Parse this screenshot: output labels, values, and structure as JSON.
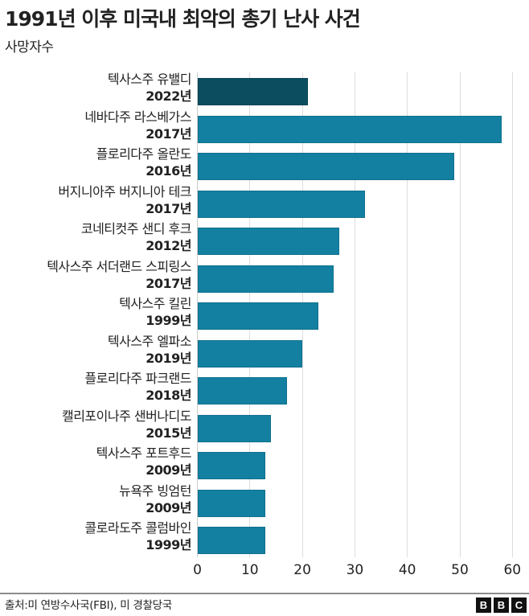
{
  "header": {
    "title": "1991년 이후 미국내 최악의 총기 난사 사건",
    "subtitle": "사망자수"
  },
  "footer": {
    "source": "출처:미 연방수사국(FBI), 미 경찰당국",
    "logo_letters": [
      "B",
      "B",
      "C"
    ]
  },
  "colors": {
    "highlight_bar": "#0c4d60",
    "bar": "#1380a1",
    "gridline": "#dddddd",
    "text": "#222222"
  },
  "chart_data": {
    "type": "bar",
    "orientation": "horizontal",
    "title": "1991년 이후 미국내 최악의 총기 난사 사건",
    "subtitle": "사망자수",
    "xlabel": "",
    "ylabel": "",
    "xlim": [
      0,
      60
    ],
    "x_ticks": [
      0,
      10,
      20,
      30,
      40,
      50,
      60
    ],
    "grid": true,
    "legend": null,
    "categories": [
      "텍사스주 유밸디 2022년",
      "네바다주 라스베가스 2017년",
      "플로리다주 올란도 2016년",
      "버지니아주 버지니아 테크 2017년",
      "코네티컷주 샌디 후크 2012년",
      "텍사스주 서더랜드 스피링스 2017년",
      "텍사스주 킬린 1999년",
      "텍사스주 엘파소 2019년",
      "플로리다주 파크랜드 2018년",
      "캘리포이나주 샌버나디도 2015년",
      "텍사스주 포트후드 2009년",
      "뉴욕주 빙엄턴 2009년",
      "콜로라도주 콜럼바인 1999년"
    ],
    "series": [
      {
        "name": "사망자수",
        "values": [
          21,
          58,
          49,
          32,
          27,
          26,
          23,
          20,
          17,
          14,
          13,
          13,
          13
        ]
      }
    ],
    "highlighted_index": 0,
    "rows": [
      {
        "place": "텍사스주 유밸디",
        "year": "2022년",
        "value": 21,
        "highlight": true
      },
      {
        "place": "네바다주 라스베가스",
        "year": "2017년",
        "value": 58,
        "highlight": false
      },
      {
        "place": "플로리다주 올란도",
        "year": "2016년",
        "value": 49,
        "highlight": false
      },
      {
        "place": "버지니아주 버지니아 테크",
        "year": "2017년",
        "value": 32,
        "highlight": false
      },
      {
        "place": "코네티컷주 샌디 후크",
        "year": "2012년",
        "value": 27,
        "highlight": false
      },
      {
        "place": "텍사스주 서더랜드 스피링스",
        "year": "2017년",
        "value": 26,
        "highlight": false
      },
      {
        "place": "텍사스주 킬린",
        "year": "1999년",
        "value": 23,
        "highlight": false
      },
      {
        "place": "텍사스주 엘파소",
        "year": "2019년",
        "value": 20,
        "highlight": false
      },
      {
        "place": "플로리다주 파크랜드",
        "year": "2018년",
        "value": 17,
        "highlight": false
      },
      {
        "place": "캘리포이나주 샌버나디도",
        "year": "2015년",
        "value": 14,
        "highlight": false
      },
      {
        "place": "텍사스주 포트후드",
        "year": "2009년",
        "value": 13,
        "highlight": false
      },
      {
        "place": "뉴욕주 빙엄턴",
        "year": "2009년",
        "value": 13,
        "highlight": false
      },
      {
        "place": "콜로라도주 콜럼바인",
        "year": "1999년",
        "value": 13,
        "highlight": false
      }
    ]
  }
}
